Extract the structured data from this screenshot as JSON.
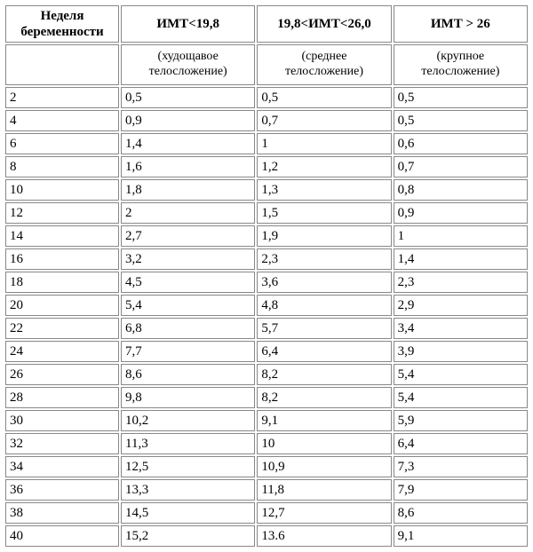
{
  "table": {
    "columns": [
      {
        "key": "week",
        "header": "Неделя беременности",
        "subheader": ""
      },
      {
        "key": "a",
        "header": "ИМТ<19,8",
        "subheader": "(худощавое телосложение)"
      },
      {
        "key": "b",
        "header": "19,8<ИМТ<26,0",
        "subheader": "(среднее телосложение)"
      },
      {
        "key": "c",
        "header": "ИМТ > 26",
        "subheader": "(крупное телосложение)"
      }
    ],
    "rows": [
      {
        "week": "2",
        "a": "0,5",
        "b": "0,5",
        "c": "0,5"
      },
      {
        "week": "4",
        "a": "0,9",
        "b": "0,7",
        "c": "0,5"
      },
      {
        "week": "6",
        "a": "1,4",
        "b": "1",
        "c": "0,6"
      },
      {
        "week": "8",
        "a": "1,6",
        "b": "1,2",
        "c": "0,7"
      },
      {
        "week": "10",
        "a": "1,8",
        "b": "1,3",
        "c": "0,8"
      },
      {
        "week": "12",
        "a": "2",
        "b": "1,5",
        "c": "0,9"
      },
      {
        "week": " 14",
        "a": " 2,7",
        "b": "1,9",
        "c": "1"
      },
      {
        "week": "16",
        "a": "3,2",
        "b": "2,3",
        "c": "1,4"
      },
      {
        "week": "18",
        "a": "4,5",
        "b": "3,6",
        "c": "2,3"
      },
      {
        "week": "20",
        "a": "5,4",
        "b": "4,8",
        "c": "2,9"
      },
      {
        "week": "22",
        "a": "6,8",
        "b": "5,7",
        "c": "3,4"
      },
      {
        "week": "24",
        "a": "7,7",
        "b": "6,4",
        "c": "3,9"
      },
      {
        "week": "26",
        "a": "8,6",
        "b": "8,2",
        "c": "5,4"
      },
      {
        "week": "28",
        "a": "9,8",
        "b": "8,2",
        "c": "5,4"
      },
      {
        "week": "30",
        "a": "10,2",
        "b": "9,1",
        "c": "5,9"
      },
      {
        "week": "32",
        "a": "11,3",
        "b": "10",
        "c": "6,4"
      },
      {
        "week": "34",
        "a": "12,5",
        "b": "10,9",
        "c": "7,3"
      },
      {
        "week": "36",
        "a": "13,3",
        "b": "11,8",
        "c": "7,9"
      },
      {
        "week": "38",
        "a": "14,5",
        "b": "12,7",
        "c": "8,6"
      },
      {
        "week": "40",
        "a": "15,2",
        "b": "13.6",
        "c": "9,1"
      }
    ],
    "border_color": "#888888",
    "background_color": "#ffffff",
    "font_family": "Times New Roman",
    "header_fontsize": 15,
    "cell_fontsize": 15
  }
}
